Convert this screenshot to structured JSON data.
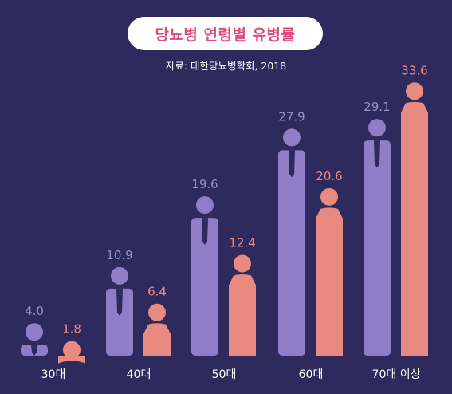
{
  "title": "당뇨병 연령별 유병률",
  "source": "자료: 대한당뇨병학회, 2018",
  "colors": {
    "background": "#2f2a5e",
    "male": "#8f7dc8",
    "female": "#e98a80",
    "male_label": "#9a8dd0",
    "female_label": "#ec8880",
    "axis_label": "#ffffff",
    "title": "#e0497a",
    "tie": "#2f2a5e"
  },
  "chart_data": {
    "type": "bar",
    "title": "당뇨병 연령별 유병률",
    "categories": [
      "30대",
      "40대",
      "50대",
      "60대",
      "70대 이상"
    ],
    "series": [
      {
        "values": [
          4.0,
          10.9,
          19.6,
          27.9,
          29.1
        ]
      },
      {
        "values": [
          1.8,
          6.4,
          12.4,
          20.6,
          33.6
        ]
      }
    ],
    "icons": [
      "male-figure",
      "female-figure"
    ]
  }
}
